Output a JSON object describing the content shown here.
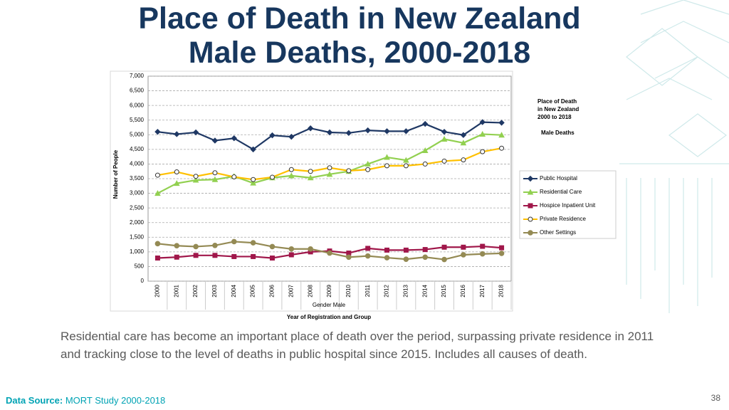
{
  "slide": {
    "title_lines": [
      "Place of Death in New Zealand",
      "Male Deaths, 2000-2018"
    ],
    "caption": "Residential care has become an important place of death over the period, surpassing private residence in 2011 and tracking close to the level of deaths in public hospital since 2015. Includes all causes of death.",
    "source_label": "Data Source:",
    "source": "MORT Study 2000-2018",
    "page_number": "38"
  },
  "chart_data": {
    "type": "line",
    "annotation_lines": [
      "Place of Death",
      "in New Zealand",
      "2000 to 2018"
    ],
    "annotation_subtitle": "Male Deaths",
    "y_label": "Number of People",
    "x_label_top": "Gender Male",
    "x_label": "Year of Registration and Group",
    "categories": [
      "2000",
      "2001",
      "2002",
      "2003",
      "2004",
      "2005",
      "2006",
      "2007",
      "2008",
      "2009",
      "2010",
      "2011",
      "2012",
      "2013",
      "2014",
      "2015",
      "2016",
      "2017",
      "2018"
    ],
    "ylim": [
      0,
      7000
    ],
    "yticks": [
      0,
      500,
      {
        "value": 1000,
        "label": "1,000"
      },
      {
        "value": 1500,
        "label": "1,500"
      },
      {
        "value": 2000,
        "label": "2,000"
      },
      {
        "value": 2500,
        "label": "2,500"
      },
      {
        "value": 3000,
        "label": "3,000"
      },
      {
        "value": 3500,
        "label": "3,500"
      },
      {
        "value": 4000,
        "label": "4,000"
      },
      {
        "value": 4500,
        "label": "4,500"
      },
      {
        "value": 5000,
        "label": "5,000"
      },
      {
        "value": 5500,
        "label": "5,500"
      },
      {
        "value": 6000,
        "label": "6,000"
      },
      {
        "value": 6500,
        "label": "6,500"
      },
      {
        "value": 7000,
        "label": "7,000"
      }
    ],
    "grid": true,
    "series": [
      {
        "name": "Public Hospital",
        "color": "#1f3864",
        "marker": "diamond",
        "values": [
          5100,
          5020,
          5080,
          4800,
          4880,
          4500,
          4980,
          4930,
          5220,
          5080,
          5060,
          5150,
          5120,
          5120,
          5370,
          5100,
          4990,
          5430,
          5410
        ]
      },
      {
        "name": "Residential Care",
        "color": "#92d050",
        "marker": "triangle",
        "values": [
          3000,
          3340,
          3450,
          3470,
          3580,
          3350,
          3530,
          3600,
          3530,
          3650,
          3750,
          4000,
          4230,
          4130,
          4460,
          4850,
          4720,
          5020,
          4990
        ]
      },
      {
        "name": "Hospice Inpatient Unit",
        "color": "#a0174a",
        "marker": "square",
        "values": [
          790,
          820,
          880,
          880,
          840,
          840,
          790,
          900,
          1000,
          1030,
          960,
          1120,
          1060,
          1060,
          1080,
          1160,
          1160,
          1190,
          1140
        ]
      },
      {
        "name": "Private Residence",
        "color": "#ffc000",
        "marker": "open-circle",
        "values": [
          3620,
          3730,
          3580,
          3700,
          3560,
          3470,
          3550,
          3810,
          3750,
          3870,
          3770,
          3810,
          3940,
          3940,
          4000,
          4100,
          4140,
          4420,
          4540
        ]
      },
      {
        "name": "Other Settings",
        "color": "#948a54",
        "marker": "circle",
        "values": [
          1280,
          1210,
          1180,
          1220,
          1350,
          1310,
          1180,
          1100,
          1100,
          960,
          820,
          860,
          800,
          750,
          820,
          740,
          900,
          930,
          950
        ]
      }
    ]
  }
}
